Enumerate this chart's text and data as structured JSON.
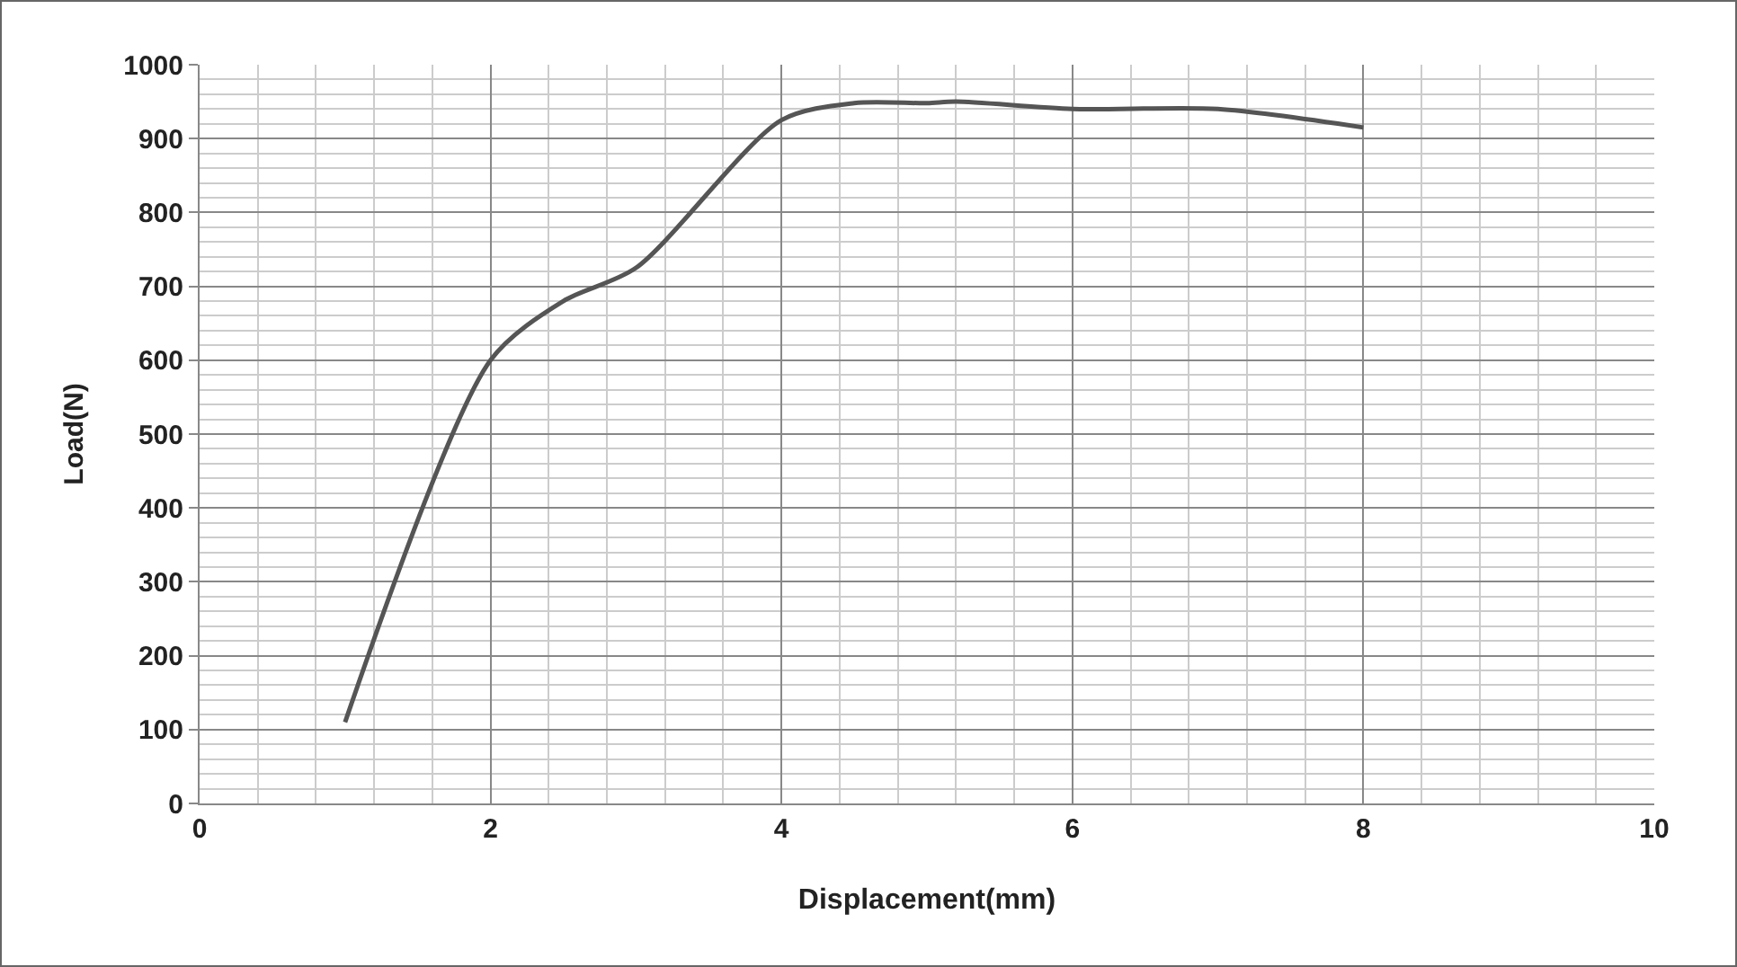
{
  "chart_data": {
    "type": "line",
    "xlabel": "Displacement(mm)",
    "ylabel": "Load(N)",
    "x": [
      1,
      2,
      2.5,
      3,
      4,
      4.5,
      5,
      5.2,
      6,
      7,
      8
    ],
    "series": [
      {
        "color": "#555555",
        "values": [
          110,
          600,
          680,
          725,
          925,
          948,
          948,
          950,
          940,
          940,
          915
        ]
      }
    ],
    "xlim": [
      0,
      10
    ],
    "xticks": [
      0,
      2,
      4,
      6,
      8,
      10
    ],
    "ylim": [
      0,
      1000
    ],
    "yticks": [
      0,
      100,
      200,
      300,
      400,
      500,
      600,
      700,
      800,
      900,
      1000
    ],
    "grid": true,
    "marker": "none",
    "line_style": "solid"
  }
}
